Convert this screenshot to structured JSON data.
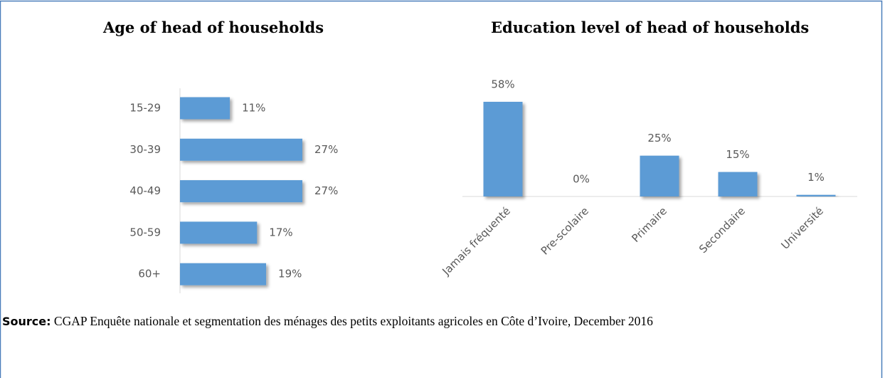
{
  "chart_data": [
    {
      "type": "hbar",
      "title": "Age of head of households",
      "categories": [
        "15-29",
        "30-39",
        "40-49",
        "50-59",
        "60+"
      ],
      "values": [
        11,
        27,
        27,
        17,
        19
      ],
      "value_labels": [
        "11%",
        "27%",
        "27%",
        "17%",
        "19%"
      ],
      "color": "#5b9bd5"
    },
    {
      "type": "bar",
      "title": "Education level of head of households",
      "categories": [
        "Jamais fréquenté",
        "Pre-scolaire",
        "Primaire",
        "Secondaire",
        "Université"
      ],
      "values": [
        58,
        0,
        25,
        15,
        1
      ],
      "value_labels": [
        "58%",
        "0%",
        "25%",
        "15%",
        "1%"
      ],
      "color": "#5b9bd5"
    }
  ],
  "source": {
    "label": "Source:",
    "text": "CGAP Enquête nationale et segmentation des ménages des petits exploitants agricoles en Côte d’Ivoire, December 2016"
  }
}
